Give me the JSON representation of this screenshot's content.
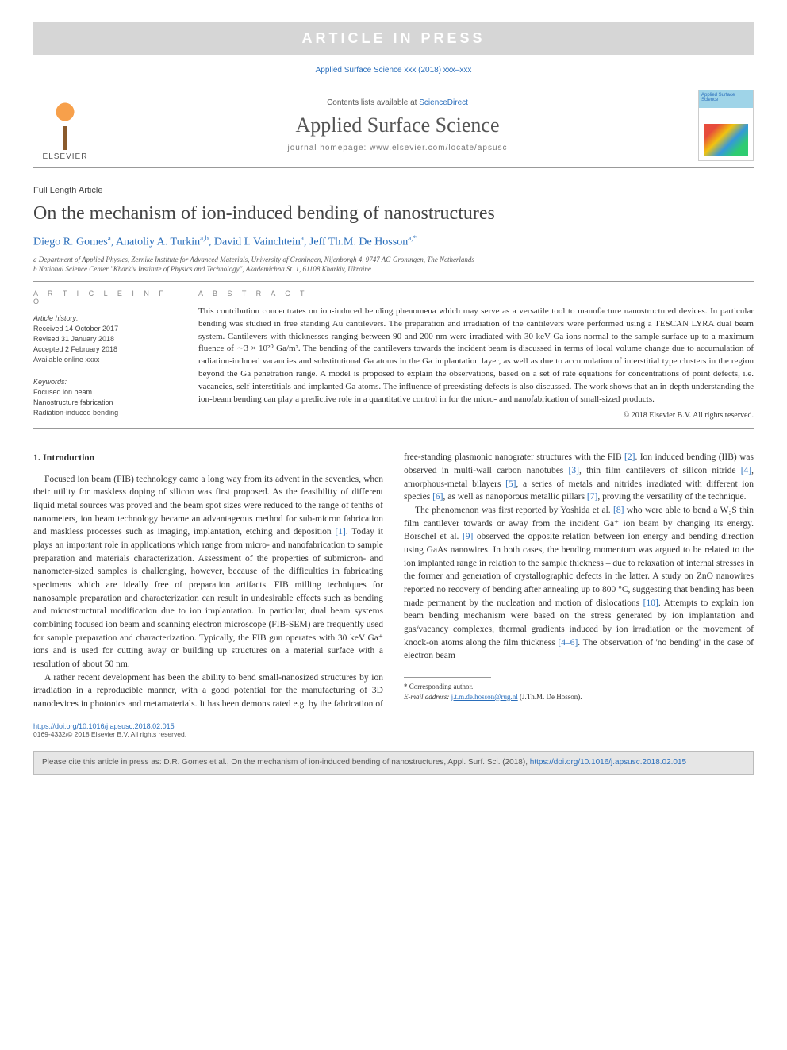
{
  "banner": "ARTICLE IN PRESS",
  "citation_short": "Applied Surface Science xxx (2018) xxx–xxx",
  "header": {
    "publisher": "ELSEVIER",
    "contents_prefix": "Contents lists available at ",
    "contents_link": "ScienceDirect",
    "journal": "Applied Surface Science",
    "homepage_prefix": "journal homepage: ",
    "homepage": "www.elsevier.com/locate/apsusc",
    "cover_label": "Applied Surface Science"
  },
  "article": {
    "type": "Full Length Article",
    "title": "On the mechanism of ion-induced bending of nanostructures",
    "authors_html": "Diego R. Gomes<sup>a</sup>, Anatoliy A. Turkin<sup>a,b</sup>, David I. Vainchtein<sup>a</sup>, Jeff Th.M. De Hosson<sup>a,*</sup>",
    "affiliations": [
      "a Department of Applied Physics, Zernike Institute for Advanced Materials, University of Groningen, Nijenborgh 4, 9747 AG Groningen, The Netherlands",
      "b National Science Center \"Kharkiv Institute of Physics and Technology\", Akademichna St. 1, 61108 Kharkiv, Ukraine"
    ]
  },
  "info": {
    "heading": "A R T I C L E   I N F O",
    "history_label": "Article history:",
    "received": "Received 14 October 2017",
    "revised": "Revised 31 January 2018",
    "accepted": "Accepted 2 February 2018",
    "online": "Available online xxxx",
    "keywords_label": "Keywords:",
    "keywords": [
      "Focused ion beam",
      "Nanostructure fabrication",
      "Radiation-induced bending"
    ]
  },
  "abstract": {
    "heading": "A B S T R A C T",
    "text": "This contribution concentrates on ion-induced bending phenomena which may serve as a versatile tool to manufacture nanostructured devices. In particular bending was studied in free standing Au cantilevers. The preparation and irradiation of the cantilevers were performed using a TESCAN LYRA dual beam system. Cantilevers with thicknesses ranging between 90 and 200 nm were irradiated with 30 keV Ga ions normal to the sample surface up to a maximum fluence of ∼3 × 10²⁰ Ga/m². The bending of the cantilevers towards the incident beam is discussed in terms of local volume change due to accumulation of radiation-induced vacancies and substitutional Ga atoms in the Ga implantation layer, as well as due to accumulation of interstitial type clusters in the region beyond the Ga penetration range. A model is proposed to explain the observations, based on a set of rate equations for concentrations of point defects, i.e. vacancies, self-interstitials and implanted Ga atoms. The influence of preexisting defects is also discussed. The work shows that an in-depth understanding the ion-beam bending can play a predictive role in a quantitative control in for the micro- and nanofabrication of small-sized products.",
    "copyright": "© 2018 Elsevier B.V. All rights reserved."
  },
  "body": {
    "section1_title": "1. Introduction",
    "p1": "Focused ion beam (FIB) technology came a long way from its advent in the seventies, when their utility for maskless doping of silicon was first proposed. As the feasibility of different liquid metal sources was proved and the beam spot sizes were reduced to the range of tenths of nanometers, ion beam technology became an advantageous method for sub-micron fabrication and maskless processes such as imaging, implantation, etching and deposition [1]. Today it plays an important role in applications which range from micro- and nanofabrication to sample preparation and materials characterization. Assessment of the properties of submicron- and nanometer-sized samples is challenging, however, because of the difficulties in fabricating specimens which are ideally free of preparation artifacts. FIB milling techniques for nanosample preparation and characterization can result in undesirable effects such as bending and microstructural modification due to ion implantation. In particular, dual beam systems combining focused ion beam and scanning electron microscope (FIB-SEM) are frequently used for sample preparation and characterization. Typically, the FIB gun operates with 30 keV Ga⁺ ions and is used for cutting away or building up structures on a material surface with a resolution of about 50 nm.",
    "p2": "A rather recent development has been the ability to bend small-nanosized structures by ion irradiation in a reproducible manner, with a good potential for the manufacturing of 3D nanodevices in photonics and metamaterials. It has been demonstrated e.g. by the fabrication of free-standing plasmonic nanograter structures with the FIB [2]. Ion induced bending (IIB) was observed in multi-wall carbon nanotubes [3], thin film cantilevers of silicon nitride [4], amorphous-metal bilayers [5], a series of metals and nitrides irradiated with different ion species [6], as well as nanoporous metallic pillars [7], proving the versatility of the technique.",
    "p3": "The phenomenon was first reported by Yoshida et al. [8] who were able to bend a W₂S thin film cantilever towards or away from the incident Ga⁺ ion beam by changing its energy. Borschel et al. [9] observed the opposite relation between ion energy and bending direction using GaAs nanowires. In both cases, the bending momentum was argued to be related to the ion implanted range in relation to the sample thickness – due to relaxation of internal stresses in the former and generation of crystallographic defects in the latter. A study on ZnO nanowires reported no recovery of bending after annealing up to 800 °C, suggesting that bending has been made permanent by the nucleation and motion of dislocations [10]. Attempts to explain ion beam bending mechanism were based on the stress generated by ion implantation and gas/vacancy complexes, thermal gradients induced by ion irradiation or the movement of knock-on atoms along the film thickness [4–6]. The observation of 'no bending' in the case of electron beam"
  },
  "footnote": {
    "corr": "* Corresponding author.",
    "email_label": "E-mail address: ",
    "email": "j.t.m.de.hosson@rug.nl",
    "email_name": " (J.Th.M. De Hosson)."
  },
  "footer": {
    "doi": "https://doi.org/10.1016/j.apsusc.2018.02.015",
    "issn_copy": "0169-4332/© 2018 Elsevier B.V. All rights reserved."
  },
  "citebox": {
    "text_prefix": "Please cite this article in press as: D.R. Gomes et al., On the mechanism of ion-induced bending of nanostructures, Appl. Surf. Sci. (2018), ",
    "link": "https://doi.org/10.1016/j.apsusc.2018.02.015"
  },
  "colors": {
    "link": "#2a6ebb",
    "banner_bg": "#d6d6d6",
    "banner_fg": "#ffffff",
    "rule": "#999999",
    "citebox_bg": "#e6e6e6"
  }
}
